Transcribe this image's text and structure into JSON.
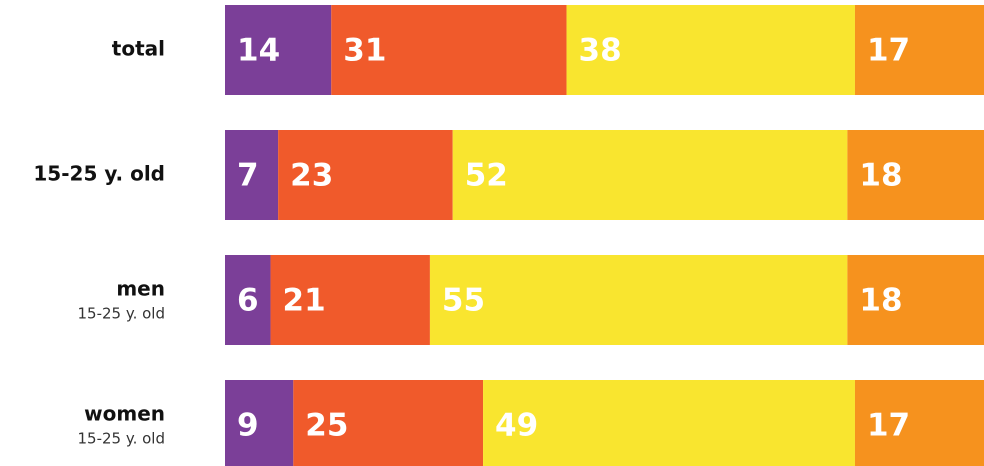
{
  "chart_data": {
    "type": "stacked-bar-horizontal",
    "categories": [
      "total",
      "15-25 y. old",
      "men",
      "women"
    ],
    "sublabels": [
      null,
      null,
      "15-25 y. old",
      "15-25 y. old"
    ],
    "xlim": [
      0,
      100
    ],
    "series": [
      {
        "color": "#7b3f98",
        "values": [
          14,
          7,
          6,
          9
        ]
      },
      {
        "color": "#f05a2b",
        "values": [
          31,
          23,
          21,
          25
        ]
      },
      {
        "color": "#f9e52f",
        "values": [
          38,
          52,
          55,
          49
        ]
      },
      {
        "color": "#f6921e",
        "values": [
          17,
          18,
          18,
          17
        ]
      }
    ]
  }
}
